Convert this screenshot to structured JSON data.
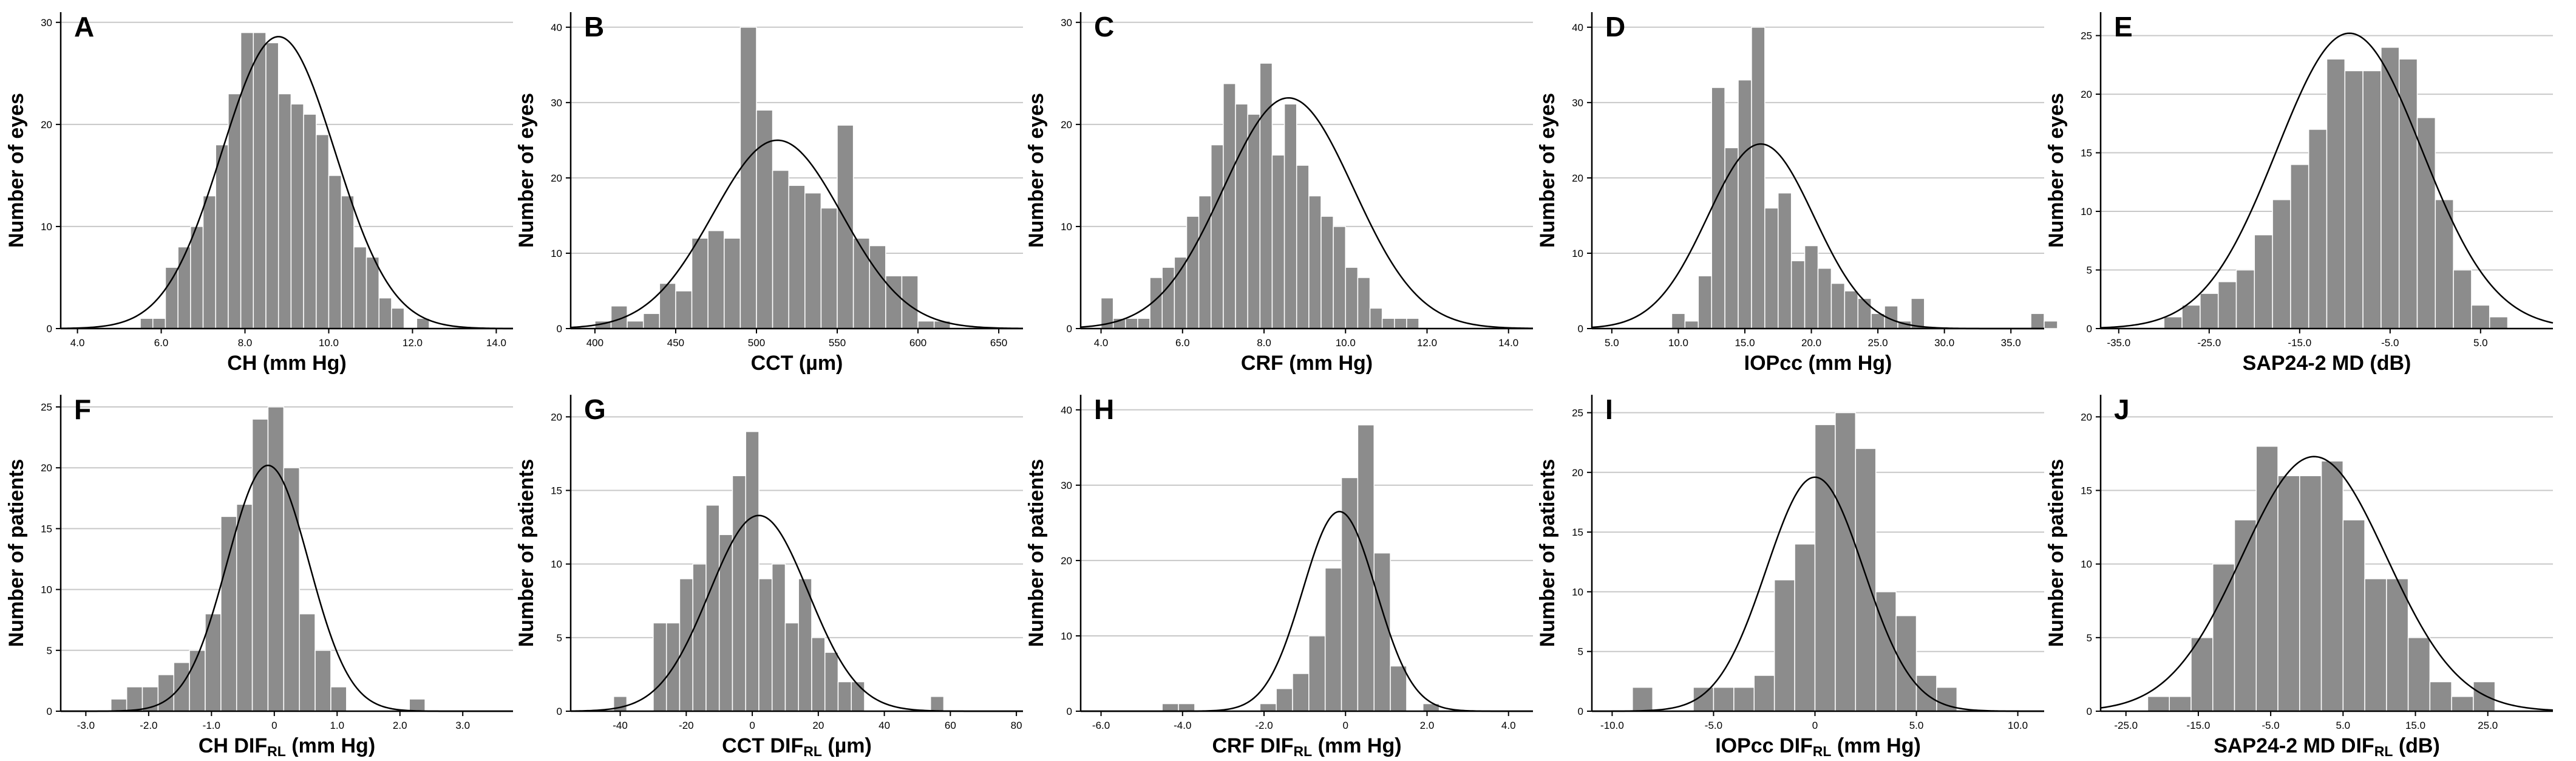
{
  "figure_title": "",
  "chart_data": [
    {
      "letter": "A",
      "type": "bar",
      "xlabel": "CH (mm Hg)",
      "ylabel": "Number of eyes",
      "xlim": [
        3.6,
        14.4
      ],
      "ylim": [
        0,
        31
      ],
      "yticks": [
        0,
        10,
        20,
        30
      ],
      "xticks": [
        4,
        6,
        8,
        10,
        12,
        14
      ],
      "xtick_labels": [
        "4.0",
        "6.0",
        "8.0",
        "10.0",
        "12.0",
        "14.0"
      ],
      "bin_start": 5.5,
      "bin_width": 0.3,
      "values": [
        1,
        1,
        6,
        8,
        10,
        13,
        18,
        23,
        29,
        29,
        28,
        23,
        22,
        21,
        19,
        15,
        13,
        8,
        7,
        3,
        2,
        0,
        1
      ],
      "curve": {
        "mean": 8.8,
        "sd": 1.35,
        "peak": 28.6
      }
    },
    {
      "letter": "B",
      "type": "bar",
      "xlabel": "CCT (µm)",
      "ylabel": "Number of eyes",
      "xlim": [
        385,
        665
      ],
      "ylim": [
        0,
        42
      ],
      "yticks": [
        0,
        10,
        20,
        30,
        40
      ],
      "xticks": [
        400,
        450,
        500,
        550,
        600,
        650
      ],
      "xtick_labels": [
        "400",
        "450",
        "500",
        "550",
        "600",
        "650"
      ],
      "bin_start": 400,
      "bin_width": 10,
      "values": [
        1,
        3,
        1,
        2,
        6,
        5,
        12,
        13,
        12,
        40,
        29,
        21,
        19,
        18,
        16,
        27,
        12,
        11,
        7,
        7,
        1,
        1
      ],
      "curve": {
        "mean": 513,
        "sd": 40,
        "peak": 25
      }
    },
    {
      "letter": "C",
      "type": "bar",
      "xlabel": "CRF (mm Hg)",
      "ylabel": "Number of eyes",
      "xlim": [
        3.5,
        14.6
      ],
      "ylim": [
        0,
        31
      ],
      "yticks": [
        0,
        10,
        20,
        30
      ],
      "xticks": [
        4,
        6,
        8,
        10,
        12,
        14
      ],
      "xtick_labels": [
        "4.0",
        "6.0",
        "8.0",
        "10.0",
        "12.0",
        "14.0"
      ],
      "bin_start": 4.0,
      "bin_width": 0.3,
      "values": [
        3,
        1,
        1,
        1,
        5,
        6,
        7,
        11,
        13,
        18,
        24,
        22,
        21,
        26,
        17,
        22,
        16,
        13,
        11,
        10,
        6,
        5,
        2,
        1,
        1,
        1
      ],
      "curve": {
        "mean": 8.6,
        "sd": 1.6,
        "peak": 22.6
      }
    },
    {
      "letter": "D",
      "type": "bar",
      "xlabel": "IOPcc (mm Hg)",
      "ylabel": "Number of eyes",
      "xlim": [
        3.5,
        37.5
      ],
      "ylim": [
        0,
        42
      ],
      "yticks": [
        0,
        10,
        20,
        30,
        40
      ],
      "xticks": [
        5,
        10,
        15,
        20,
        25,
        30,
        35
      ],
      "xtick_labels": [
        "5.0",
        "10.0",
        "15.0",
        "20.0",
        "25.0",
        "30.0",
        "35.0"
      ],
      "bin_start": 9.5,
      "bin_width": 1,
      "values": [
        2,
        1,
        7,
        32,
        24,
        33,
        40,
        16,
        18,
        9,
        11,
        8,
        6,
        5,
        4,
        2,
        3,
        1,
        4,
        0,
        0,
        0,
        0,
        0,
        0,
        0,
        0,
        2,
        1
      ],
      "curve": {
        "mean": 16.2,
        "sd": 4.0,
        "peak": 24.5
      }
    },
    {
      "letter": "E",
      "type": "bar",
      "xlabel": "SAP24-2 MD (dB)",
      "ylabel": "Number of eyes",
      "xlim": [
        -37,
        13
      ],
      "ylim": [
        0,
        27
      ],
      "yticks": [
        0,
        5,
        10,
        15,
        20,
        25
      ],
      "xticks": [
        -35,
        -25,
        -15,
        -5,
        5
      ],
      "xtick_labels": [
        "-35.0",
        "-25.0",
        "-15.0",
        "-5.0",
        "5.0"
      ],
      "bin_start": -30,
      "bin_width": 2,
      "values": [
        1,
        2,
        3,
        4,
        5,
        8,
        11,
        14,
        17,
        23,
        22,
        22,
        24,
        23,
        18,
        11,
        5,
        2,
        1
      ],
      "curve": {
        "mean": -9.5,
        "sd": 8.0,
        "peak": 25.2
      }
    },
    {
      "letter": "F",
      "type": "bar",
      "xlabel": "CH DIF",
      "xlabel_sub": "RL",
      "xlabel_suffix": " (mm Hg)",
      "ylabel": "Number of patients",
      "xlim": [
        -3.4,
        3.8
      ],
      "ylim": [
        0,
        26
      ],
      "yticks": [
        0,
        5,
        10,
        15,
        20,
        25
      ],
      "xticks": [
        -3,
        -2,
        -1,
        0,
        1,
        2,
        3
      ],
      "xtick_labels": [
        "-3.0",
        "-2.0",
        "-1.0",
        "0",
        "1.0",
        "2.0",
        "3.0"
      ],
      "bin_start": -2.6,
      "bin_width": 0.25,
      "values": [
        1,
        2,
        2,
        3,
        4,
        5,
        8,
        16,
        17,
        24,
        25,
        20,
        8,
        5,
        2,
        0,
        0,
        0,
        0,
        1
      ],
      "curve": {
        "mean": -0.1,
        "sd": 0.65,
        "peak": 20.2
      }
    },
    {
      "letter": "G",
      "type": "bar",
      "xlabel": "CCT DIF",
      "xlabel_sub": "RL",
      "xlabel_suffix": " (µm)",
      "ylabel": "Number of patients",
      "xlim": [
        -55,
        82
      ],
      "ylim": [
        0,
        21.5
      ],
      "yticks": [
        0,
        5,
        10,
        15,
        20
      ],
      "xticks": [
        -40,
        -20,
        0,
        20,
        40,
        60,
        80
      ],
      "xtick_labels": [
        "-40",
        "-20",
        "0",
        "20",
        "40",
        "60",
        "80"
      ],
      "bin_start": -42,
      "bin_width": 4,
      "values": [
        1,
        0,
        0,
        6,
        6,
        9,
        10,
        14,
        12,
        16,
        19,
        9,
        10,
        6,
        9,
        5,
        4,
        2,
        2,
        0,
        0,
        0,
        0,
        0,
        1
      ],
      "curve": {
        "mean": 2,
        "sd": 15,
        "peak": 13.3
      }
    },
    {
      "letter": "H",
      "type": "bar",
      "xlabel": "CRF DIF",
      "xlabel_sub": "RL",
      "xlabel_suffix": " (mm Hg)",
      "ylabel": "Number of patients",
      "xlim": [
        -6.5,
        4.6
      ],
      "ylim": [
        0,
        42
      ],
      "yticks": [
        0,
        10,
        20,
        30,
        40
      ],
      "xticks": [
        -6,
        -4,
        -2,
        0,
        2,
        4
      ],
      "xtick_labels": [
        "-6.0",
        "-4.0",
        "-2.0",
        "0",
        "2.0",
        "4.0"
      ],
      "bin_start": -4.5,
      "bin_width": 0.4,
      "values": [
        1,
        1,
        0,
        0,
        0,
        0,
        1,
        3,
        5,
        10,
        19,
        31,
        38,
        21,
        6,
        0,
        1
      ],
      "curve": {
        "mean": -0.15,
        "sd": 0.9,
        "peak": 26.5
      }
    },
    {
      "letter": "I",
      "type": "bar",
      "xlabel": "IOPcc DIF",
      "xlabel_sub": "RL",
      "xlabel_suffix": " (mm Hg)",
      "ylabel": "Number of patients",
      "xlim": [
        -11,
        11.3
      ],
      "ylim": [
        0,
        26.5
      ],
      "yticks": [
        0,
        5,
        10,
        15,
        20,
        25
      ],
      "xticks": [
        -10,
        -5,
        0,
        5,
        10
      ],
      "xtick_labels": [
        "-10.0",
        "-5.0",
        "0",
        "5.0",
        "10.0"
      ],
      "bin_start": -9,
      "bin_width": 1,
      "values": [
        2,
        0,
        0,
        2,
        2,
        2,
        3,
        11,
        14,
        24,
        25,
        22,
        10,
        8,
        3,
        2
      ],
      "curve": {
        "mean": 0,
        "sd": 2.4,
        "peak": 19.6
      }
    },
    {
      "letter": "J",
      "type": "bar",
      "xlabel": "SAP24-2 MD DIF",
      "xlabel_sub": "RL",
      "xlabel_suffix": " (dB)",
      "ylabel": "Number of patients",
      "xlim": [
        -28.5,
        34
      ],
      "ylim": [
        0,
        21.5
      ],
      "yticks": [
        0,
        5,
        10,
        15,
        20
      ],
      "xticks": [
        -25,
        -15,
        -5,
        5,
        15,
        25
      ],
      "xtick_labels": [
        "-25.0",
        "-15.0",
        "-5.0",
        "5.0",
        "15.0",
        "25.0"
      ],
      "bin_start": -22,
      "bin_width": 3,
      "values": [
        1,
        1,
        5,
        10,
        13,
        18,
        16,
        16,
        17,
        13,
        9,
        9,
        5,
        2,
        1,
        2
      ],
      "curve": {
        "mean": 1,
        "sd": 10,
        "peak": 17.3
      }
    }
  ]
}
